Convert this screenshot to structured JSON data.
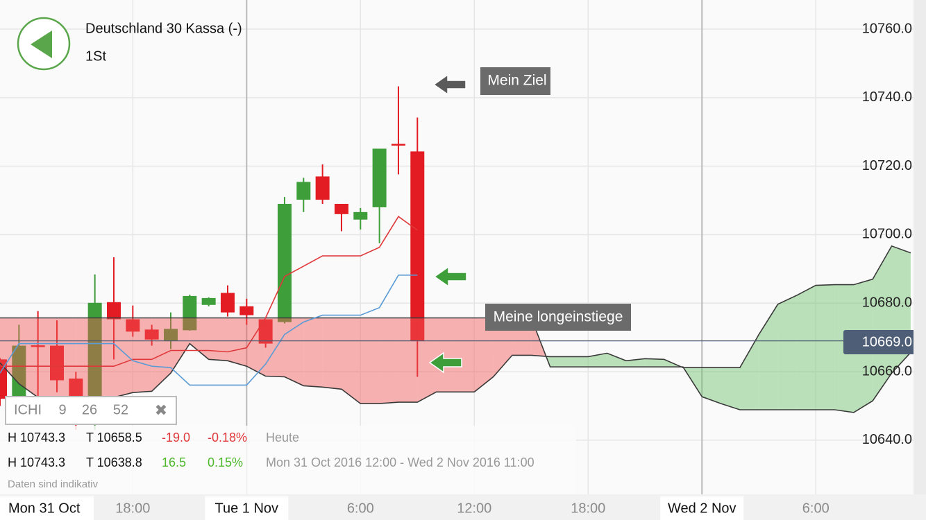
{
  "header": {
    "title": "Deutschland 30 Kassa (-)",
    "interval": "1St"
  },
  "indicator": {
    "name": "ICHI",
    "params": [
      9,
      26,
      52
    ],
    "close_icon": "✖"
  },
  "stats": [
    [
      "H 10743.3",
      "T 10658.5",
      "-19.0",
      "-0.18%",
      "Heute"
    ],
    [
      "H 10743.3",
      "T 10638.8",
      "16.5",
      "0.15%",
      "Mon 31 Oct 2016 12:00 - Wed 2 Nov 2016 11:00"
    ]
  ],
  "footnote": "Daten sind indikativ",
  "chart_data": {
    "type": "candlestick",
    "up_color": "#3d9e3a",
    "down_color": "#e31c23",
    "x": [
      11,
      12,
      13,
      14,
      15,
      16,
      17,
      18,
      19,
      20,
      21,
      22,
      23,
      24,
      25,
      26,
      27,
      28,
      29,
      30,
      31,
      32,
      33
    ],
    "open": [
      10663.6,
      10652.0,
      10667.7,
      10667.6,
      10658.0,
      10644.5,
      10680.3,
      10675.3,
      10672.3,
      10669.0,
      10672.1,
      10679.5,
      10683.0,
      10679.1,
      10675.3,
      10674.5,
      10710.2,
      10717.0,
      10709.0,
      10704.4,
      10708.0,
      10726.5,
      10724.3
    ],
    "high": [
      10664.0,
      10673.7,
      10677.7,
      10675.0,
      10660.0,
      10688.4,
      10693.4,
      10679.3,
      10673.7,
      10677.3,
      10682.5,
      10681.7,
      10685.2,
      10681.3,
      10675.3,
      10711.0,
      10716.6,
      10720.5,
      10709.0,
      10707.8,
      10725.1,
      10743.3,
      10734.2
    ],
    "low": [
      10650.0,
      10650.0,
      10652.0,
      10654.0,
      10643.0,
      10643.0,
      10663.6,
      10670.2,
      10667.6,
      10666.6,
      10672.0,
      10679.1,
      10676.1,
      10673.7,
      10667.0,
      10674.1,
      10706.6,
      10709.0,
      10701.0,
      10701.5,
      10697.5,
      10717.6,
      10658.5
    ],
    "close": [
      10652.1,
      10667.6,
      10667.6,
      10657.5,
      10644.5,
      10680.1,
      10675.3,
      10671.7,
      10669.4,
      10672.5,
      10682.1,
      10681.5,
      10677.3,
      10676.5,
      10668.2,
      10709.0,
      10715.4,
      10710.2,
      10706.0,
      10706.6,
      10725.1,
      10726.1,
      10669.0
    ],
    "lines": [
      {
        "color": "#e0383a",
        "values": [
          10661.6,
          10661.6,
          10661.6,
          10661.6,
          10661.6,
          10661.6,
          10661.6,
          10663.6,
          10663.6,
          10666.2,
          10666.2,
          10666.2,
          10665.8,
          10667.0,
          10675.7,
          10687.8,
          10690.8,
          10693.8,
          10693.8,
          10693.8,
          10696.3,
          10705.3,
          10701.3
        ]
      },
      {
        "color": "#5b9bd5",
        "values": [
          10659.6,
          10668.2,
          10668.2,
          10668.2,
          10668.2,
          10668.2,
          10668.2,
          10663.2,
          10661.6,
          10661.2,
          10656.1,
          10656.1,
          10656.1,
          10656.1,
          10662.2,
          10670.9,
          10674.5,
          10676.5,
          10676.5,
          10676.5,
          10678.7,
          10688.2,
          10688.2
        ]
      }
    ],
    "cloud": {
      "x": [
        11,
        12,
        13,
        14,
        15,
        16,
        17,
        18,
        19,
        20,
        21,
        22,
        23,
        24,
        25,
        26,
        27,
        28,
        29,
        30,
        31,
        32,
        33,
        34,
        35,
        36,
        37,
        38,
        39,
        40,
        41,
        42,
        43,
        44,
        45,
        46,
        47,
        48,
        49,
        50,
        51,
        52,
        53,
        54,
        55,
        56,
        57,
        58,
        59
      ],
      "span_a": [
        10662.6,
        10656.5,
        10652.5,
        10651.9,
        10651.9,
        10651.9,
        10652.5,
        10653.9,
        10654.3,
        10659.6,
        10668.2,
        10663.6,
        10663.2,
        10661.6,
        10658.7,
        10658.5,
        10655.9,
        10655.5,
        10654.9,
        10650.7,
        10650.7,
        10651.1,
        10651.1,
        10654.1,
        10654.1,
        10654.1,
        10658.5,
        10664.8,
        10664.8,
        10664.4,
        10664.4,
        10664.4,
        10665.4,
        10663.2,
        10663.8,
        10663.6,
        10661.2,
        10661.2,
        10661.2,
        10661.2,
        10670.9,
        10679.7,
        10682.3,
        10685.2,
        10685.4,
        10685.4,
        10687.0,
        10696.7,
        10694.7
      ],
      "span_b": [
        10675.7,
        10675.7,
        10675.7,
        10675.7,
        10675.7,
        10675.7,
        10675.7,
        10675.7,
        10675.7,
        10675.7,
        10675.7,
        10675.7,
        10675.7,
        10675.7,
        10675.7,
        10675.7,
        10675.7,
        10675.7,
        10675.7,
        10675.7,
        10675.7,
        10675.7,
        10675.7,
        10675.7,
        10675.7,
        10675.7,
        10675.7,
        10675.7,
        10675.7,
        10661.4,
        10661.4,
        10661.4,
        10661.4,
        10661.4,
        10661.4,
        10661.4,
        10661.4,
        10652.7,
        10650.7,
        10648.9,
        10648.9,
        10648.9,
        10648.9,
        10648.9,
        10648.9,
        10648.1,
        10651.5,
        10659.6,
        10665.6
      ],
      "up_color": "#6cc26a",
      "down_color": "#f25656"
    },
    "last_price": {
      "value": 10669.0,
      "label": "10669.0"
    },
    "annotations": [
      "Mein Ziel",
      "Meine longeinstiege"
    ],
    "xlim": [
      11,
      59.15
    ],
    "ylim": [
      10624.2,
      10768.5
    ],
    "x_date_label": "Mon 31 Oct",
    "xticks": [
      {
        "value": 18,
        "label": "18:00"
      },
      {
        "value": 24,
        "label": "Tue 1 Nov"
      },
      {
        "value": 30,
        "label": "6:00"
      },
      {
        "value": 36,
        "label": "12:00"
      },
      {
        "value": 42,
        "label": "18:00"
      },
      {
        "value": 48,
        "label": "Wed 2 Nov"
      },
      {
        "value": 54,
        "label": "6:00"
      }
    ],
    "yticks": [
      {
        "value": 10640,
        "label": "10640.0"
      },
      {
        "value": 10660,
        "label": "10660.0"
      },
      {
        "value": 10680,
        "label": "10680.0"
      },
      {
        "value": 10700,
        "label": "10700.0"
      },
      {
        "value": 10720,
        "label": "10720.0"
      },
      {
        "value": 10740,
        "label": "10740.0"
      },
      {
        "value": 10760,
        "label": "10760.0"
      }
    ],
    "grid": true
  }
}
